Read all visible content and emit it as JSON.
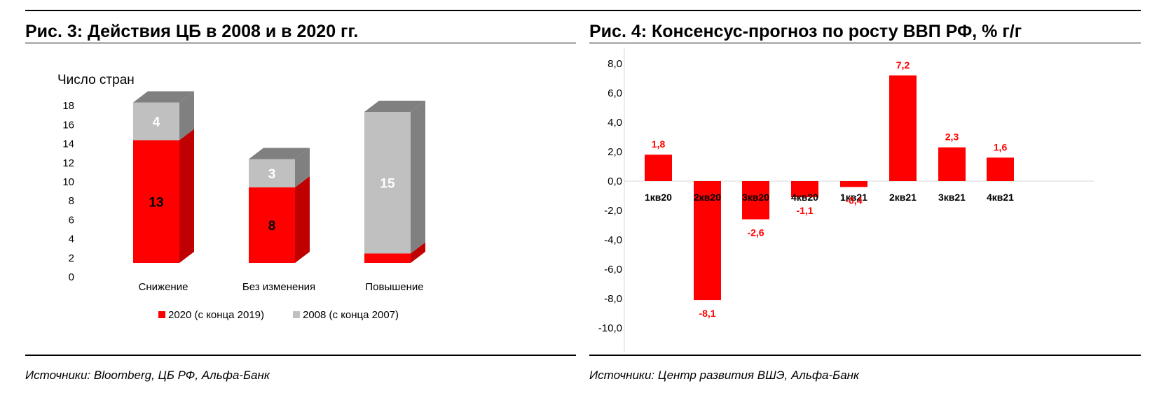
{
  "left_panel": {
    "title": "Рис. 3: Действия ЦБ в 2008 и в 2020 гг.",
    "source": "Источники:  Bloomberg,  ЦБ РФ, Альфа-Банк"
  },
  "right_panel": {
    "title": "Рис. 4: Консенсус-прогноз  по росту ВВП РФ, % г/г",
    "source": "Источники:  Центр  развития  ВШЭ, Альфа-Банк"
  },
  "colors": {
    "red": "#ff0000",
    "red_dark": "#c00000",
    "gray": "#c0c0c0",
    "gray_dark": "#808080"
  },
  "chart_data": [
    {
      "type": "bar",
      "subtype": "stacked-3d",
      "ylabel": "Число стран",
      "ylim": [
        0,
        18
      ],
      "yticks": [
        "0",
        "2",
        "4",
        "6",
        "8",
        "10",
        "12",
        "14",
        "16",
        "18"
      ],
      "categories": [
        "Снижение",
        "Без изменения",
        "Повышение"
      ],
      "series": [
        {
          "name": "2020 (с конца 2019)",
          "values": [
            13,
            8,
            1
          ],
          "labels": [
            "13",
            "8",
            ""
          ],
          "color": "#ff0000"
        },
        {
          "name": "2008 (с конца 2007)",
          "values": [
            4,
            3,
            15
          ],
          "labels": [
            "4",
            "3",
            "15"
          ],
          "color": "#c0c0c0"
        }
      ],
      "legend": "bottom"
    },
    {
      "type": "bar",
      "ylim": [
        -10,
        8
      ],
      "yticks": [
        "-10,0",
        "-8,0",
        "-6,0",
        "-4,0",
        "-2,0",
        "0,0",
        "2,0",
        "4,0",
        "6,0",
        "8,0"
      ],
      "categories": [
        "1кв20",
        "2кв20",
        "3кв20",
        "4кв20",
        "1кв21",
        "2кв21",
        "3кв21",
        "4кв21"
      ],
      "values": [
        1.8,
        -8.1,
        -2.6,
        -1.1,
        -0.4,
        7.2,
        2.3,
        1.6
      ],
      "labels": [
        "1,8",
        "-8,1",
        "-2,6",
        "-1,1",
        "-0,4",
        "7,2",
        "2,3",
        "1,6"
      ],
      "color": "#ff0000"
    }
  ]
}
